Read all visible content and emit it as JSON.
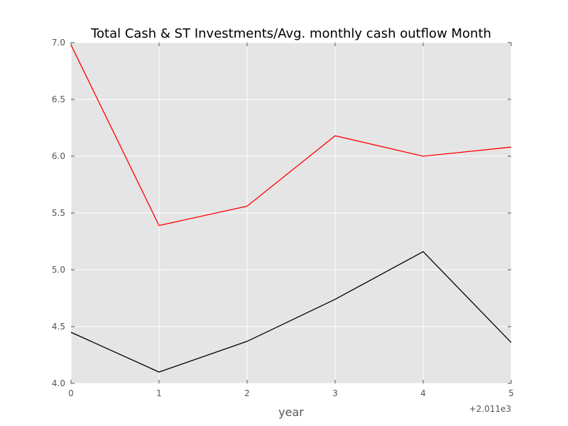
{
  "chart_data": {
    "type": "line",
    "title": "Total Cash & ST Investments/Avg. monthly cash outflow Month",
    "xlabel": "year",
    "ylabel": "",
    "x_offset_label": "+2.011e3",
    "x": [
      0,
      1,
      2,
      3,
      4,
      5
    ],
    "x_tick_labels": [
      "0",
      "1",
      "2",
      "3",
      "4",
      "5"
    ],
    "y_tick_labels": [
      "4.0",
      "4.5",
      "5.0",
      "5.5",
      "6.0",
      "6.5",
      "7.0"
    ],
    "xlim": [
      0,
      5
    ],
    "ylim": [
      4.0,
      7.0
    ],
    "grid": true,
    "background": "#e5e5e5",
    "series": [
      {
        "color": "#ff0000",
        "values": [
          6.98,
          5.39,
          5.56,
          6.18,
          6.0,
          6.08
        ]
      },
      {
        "color": "#000000",
        "values": [
          4.45,
          4.1,
          4.37,
          4.74,
          5.16,
          4.36
        ]
      }
    ]
  }
}
